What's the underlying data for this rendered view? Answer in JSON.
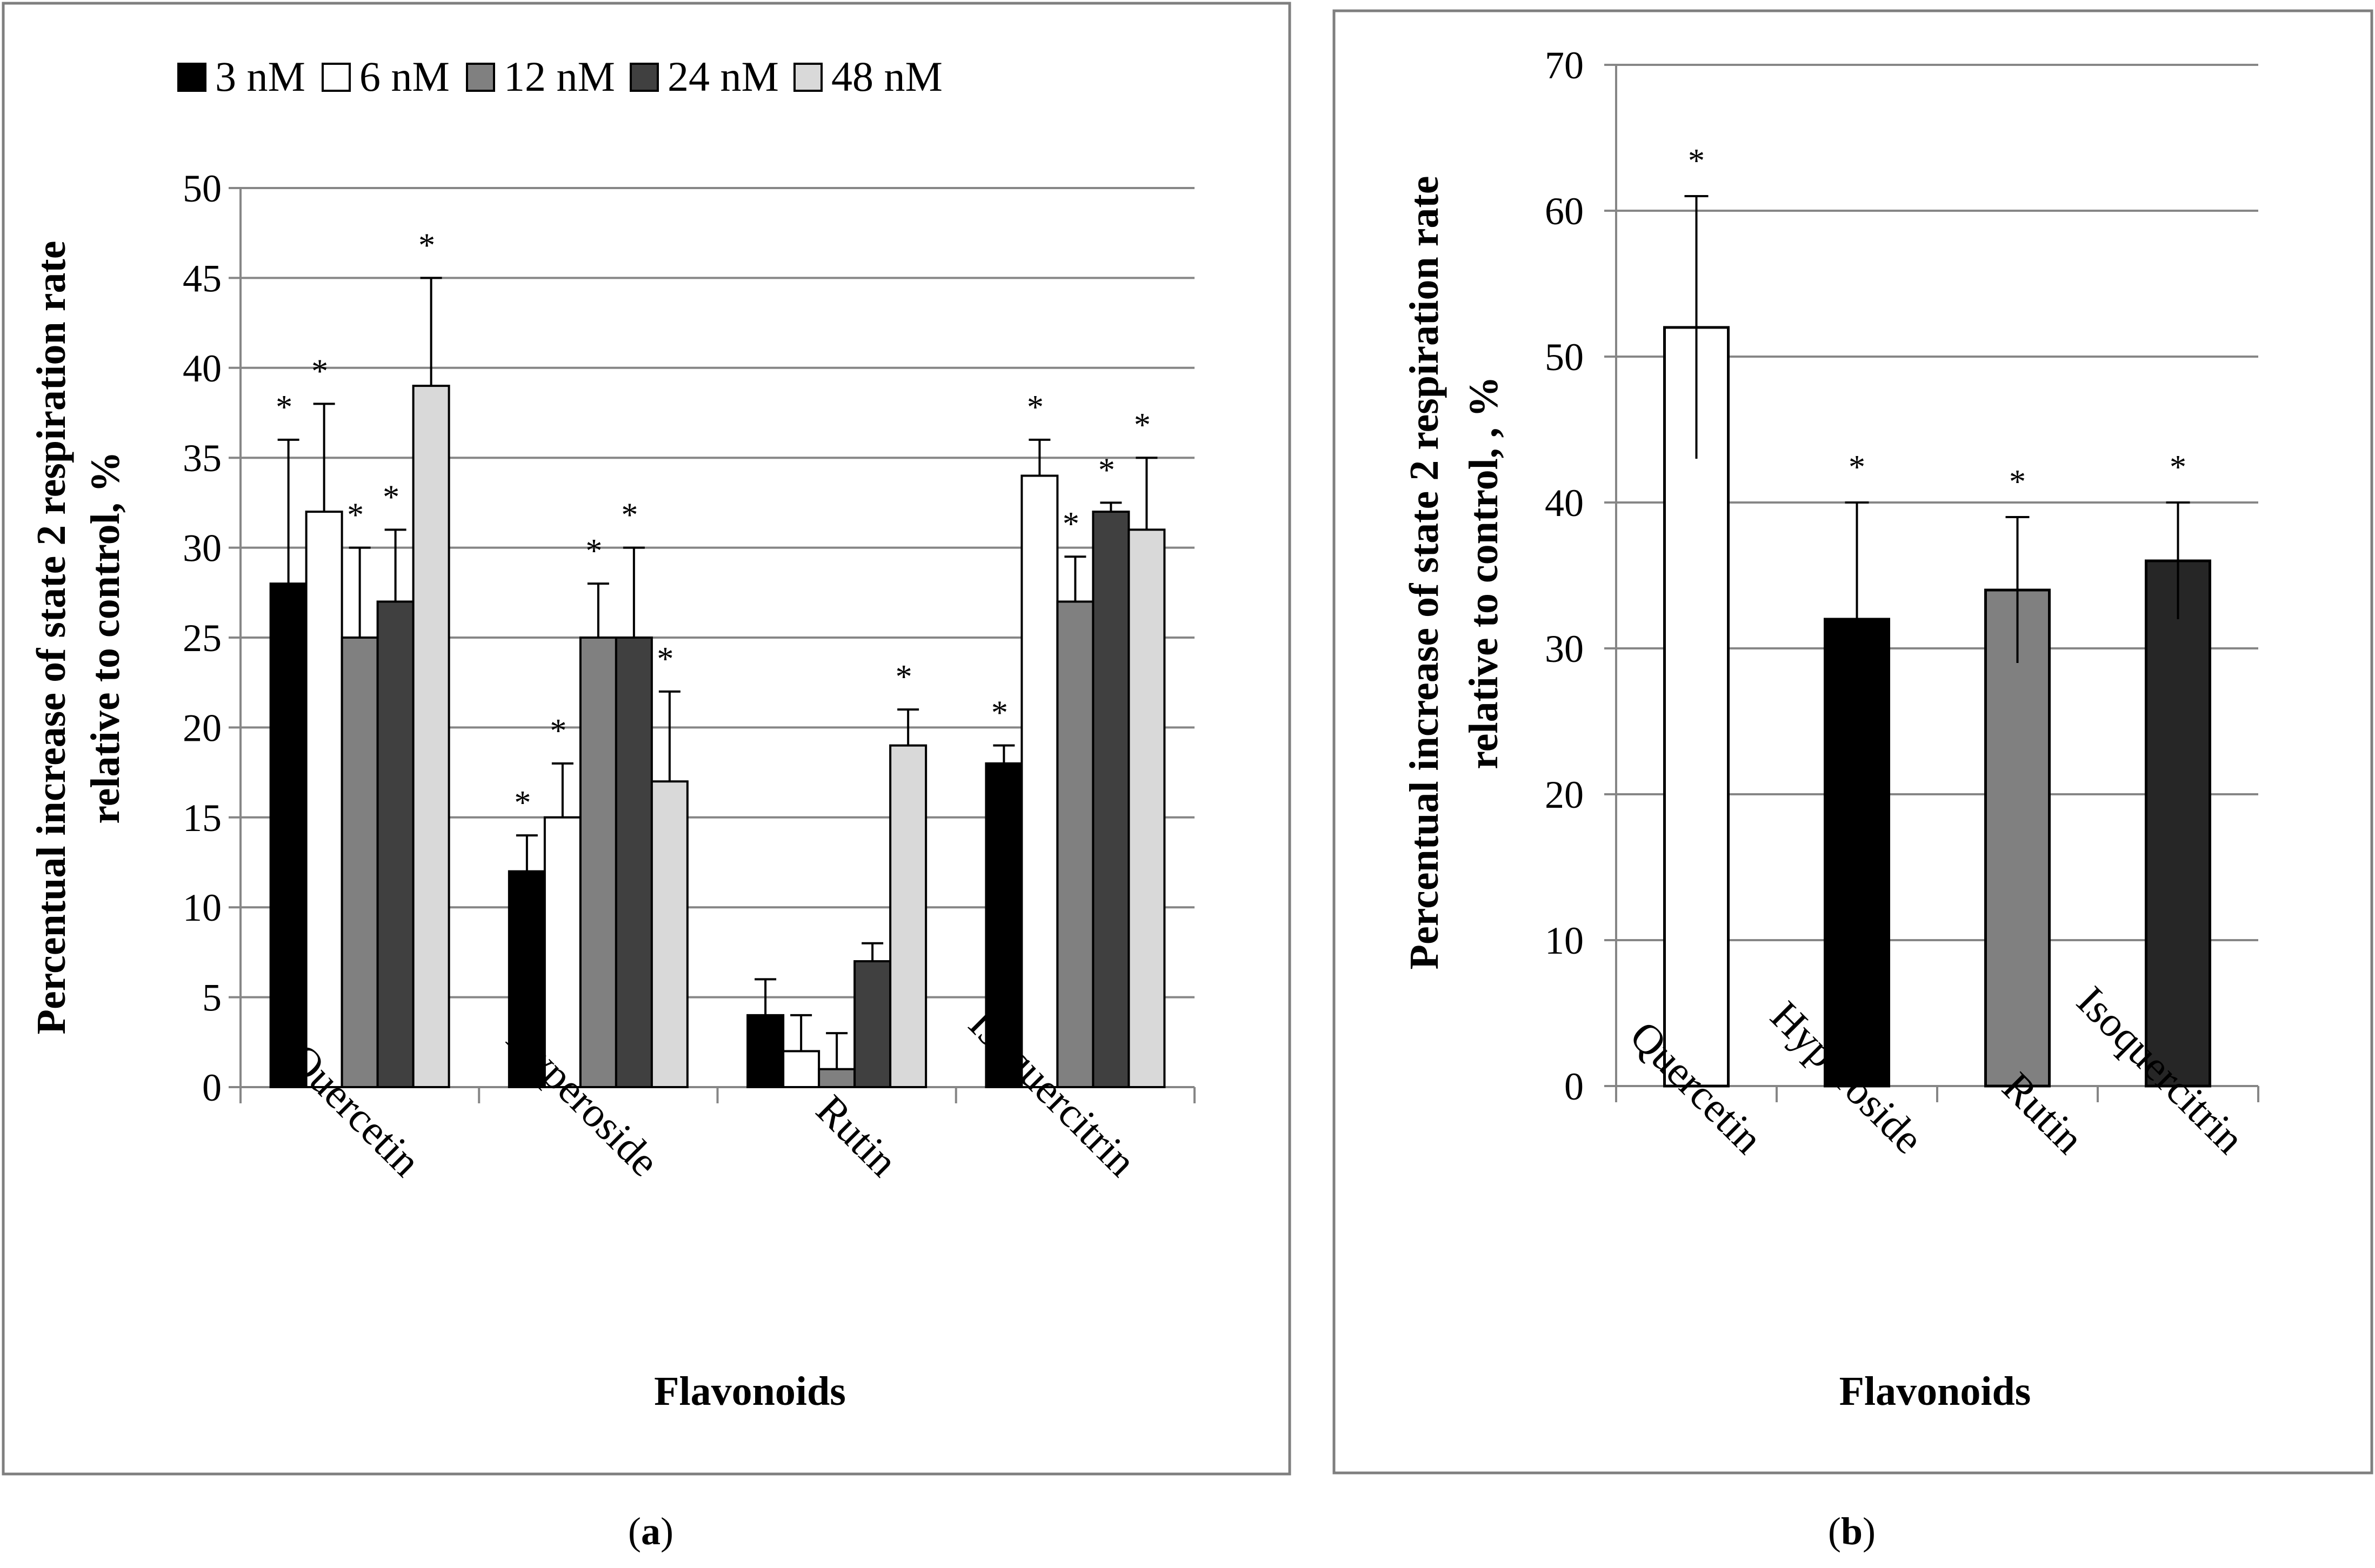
{
  "chart_data": [
    {
      "panel": "a",
      "panel_label": "a",
      "type": "bar",
      "title": "",
      "xlabel": "Flavonoids",
      "ylabel_lines": [
        "Percentual increase of state 2 respiration rate",
        "relative to control, %"
      ],
      "ylim": [
        0,
        50
      ],
      "yticks": [
        0,
        5,
        10,
        15,
        20,
        25,
        30,
        35,
        40,
        45,
        50
      ],
      "grid": true,
      "legend_position": "top",
      "categories": [
        "Quercetin",
        "Hyperoside",
        "Rutin",
        "Isoquercitrin"
      ],
      "series": [
        {
          "name": "3 nM",
          "color": "#000000",
          "values": [
            28,
            12,
            4,
            18
          ],
          "errors": [
            8,
            2,
            2,
            1
          ],
          "significant": [
            true,
            true,
            false,
            true
          ]
        },
        {
          "name": "6 nM",
          "color": "#ffffff",
          "values": [
            32,
            15,
            2,
            34
          ],
          "errors": [
            6,
            3,
            2,
            2
          ],
          "significant": [
            true,
            true,
            false,
            true
          ]
        },
        {
          "name": "12 nM",
          "color": "#808080",
          "values": [
            25,
            25,
            1,
            27
          ],
          "errors": [
            5,
            3,
            2,
            2.5
          ],
          "significant": [
            true,
            true,
            false,
            true
          ]
        },
        {
          "name": "24 nM",
          "color": "#404040",
          "values": [
            27,
            25,
            7,
            32
          ],
          "errors": [
            4,
            5,
            1,
            0.5
          ],
          "significant": [
            true,
            true,
            false,
            true
          ]
        },
        {
          "name": "48 nM",
          "color": "#d9d9d9",
          "values": [
            39,
            17,
            19,
            31
          ],
          "errors": [
            6,
            5,
            2,
            4
          ],
          "significant": [
            true,
            true,
            true,
            true
          ]
        }
      ],
      "significance_marker": "*"
    },
    {
      "panel": "b",
      "panel_label": "b",
      "type": "bar",
      "title": "",
      "xlabel": "Flavonoids",
      "ylabel_lines": [
        "Percentual increase of state 2 respiration rate",
        "relative to control, , %"
      ],
      "ylim": [
        0,
        70
      ],
      "yticks": [
        0,
        10,
        20,
        30,
        40,
        50,
        60,
        70
      ],
      "grid": true,
      "categories": [
        "Quercetin",
        "Hyperoside",
        "Rutin",
        "Isoquercitrin"
      ],
      "values": [
        52,
        32,
        34,
        36
      ],
      "errors": [
        9,
        8,
        5,
        4
      ],
      "colors": [
        "#ffffff",
        "#000000",
        "#808080",
        "#262626"
      ],
      "significant": [
        true,
        true,
        true,
        true
      ],
      "significance_marker": "*"
    }
  ]
}
